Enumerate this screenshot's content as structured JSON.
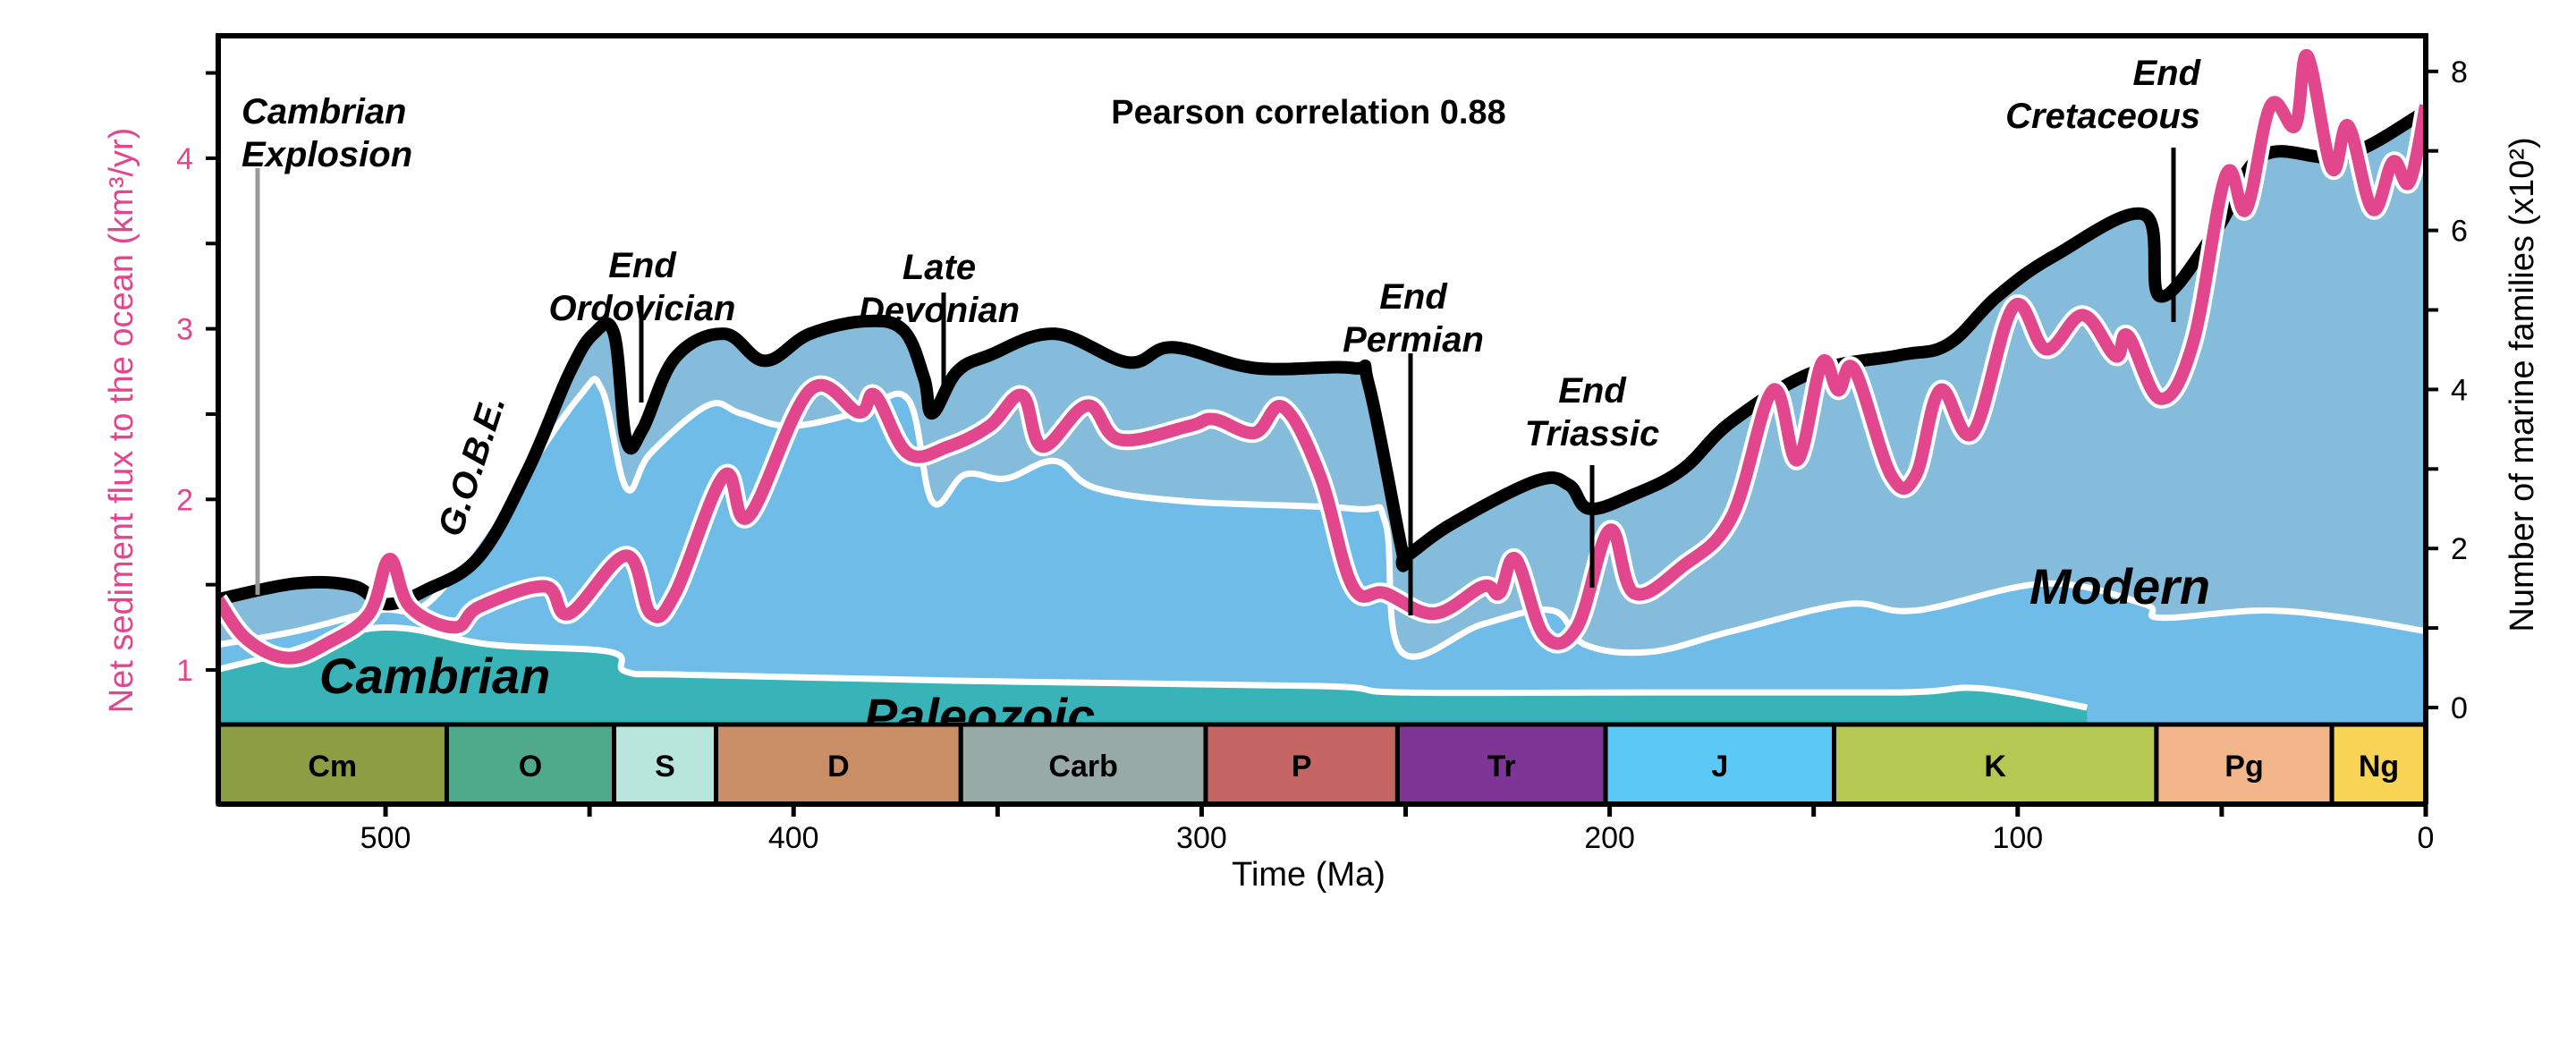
{
  "chart_data": {
    "type": "area",
    "title": "Pearson correlation 0.88",
    "xlabel": "Time (Ma)",
    "ylabel_left": "Net sediment flux to the ocean (km³/yr)",
    "ylabel_right": "Number of marine families (x10²)",
    "xlim": [
      541,
      0
    ],
    "ylim_left": [
      0.68,
      4.72
    ],
    "ylim_right": [
      -0.21,
      8.45
    ],
    "x_ticks": [
      500,
      400,
      300,
      200,
      100,
      0
    ],
    "y_left_ticks": [
      1,
      2,
      3,
      4
    ],
    "y_right_ticks": [
      0,
      2,
      4,
      6,
      8
    ],
    "colors": {
      "flux": "#e2468c",
      "total": "#000000",
      "cambrian": "#38b3b8",
      "paleozoic": "#6fbce8",
      "modern": "#85bbdb"
    },
    "fauna_labels": {
      "cambrian": "Cambrian",
      "paleozoic": "Paleozoic",
      "modern": "Modern"
    },
    "total_diversity": [
      [
        541,
        1.36
      ],
      [
        522,
        1.56
      ],
      [
        508,
        1.53
      ],
      [
        500,
        1.3
      ],
      [
        490,
        1.48
      ],
      [
        477,
        1.9
      ],
      [
        465,
        3.0
      ],
      [
        455,
        4.2
      ],
      [
        449,
        4.7
      ],
      [
        444,
        4.7
      ],
      [
        441,
        3.36
      ],
      [
        437,
        3.5
      ],
      [
        429,
        4.4
      ],
      [
        417,
        4.7
      ],
      [
        407,
        4.36
      ],
      [
        396,
        4.7
      ],
      [
        382,
        4.86
      ],
      [
        373,
        4.74
      ],
      [
        368,
        4.14
      ],
      [
        366,
        3.7
      ],
      [
        360,
        4.22
      ],
      [
        352,
        4.43
      ],
      [
        336,
        4.7
      ],
      [
        318,
        4.34
      ],
      [
        307,
        4.53
      ],
      [
        287,
        4.27
      ],
      [
        263,
        4.27
      ],
      [
        259,
        4.05
      ],
      [
        251,
        2.0
      ],
      [
        250,
        1.9
      ],
      [
        239,
        2.3
      ],
      [
        218,
        2.85
      ],
      [
        210,
        2.8
      ],
      [
        205,
        2.5
      ],
      [
        194,
        2.68
      ],
      [
        182,
        3.0
      ],
      [
        170,
        3.6
      ],
      [
        150,
        4.22
      ],
      [
        129,
        4.43
      ],
      [
        117,
        4.57
      ],
      [
        105,
        5.17
      ],
      [
        91,
        5.68
      ],
      [
        69,
        6.2
      ],
      [
        65,
        5.17
      ],
      [
        51,
        6.03
      ],
      [
        40,
        6.94
      ],
      [
        20,
        6.94
      ],
      [
        0,
        7.5
      ]
    ],
    "paleozoic_top": [
      [
        541,
        0.79
      ],
      [
        522,
        0.96
      ],
      [
        502,
        1.22
      ],
      [
        490,
        1.3
      ],
      [
        474,
        2.33
      ],
      [
        453,
        3.88
      ],
      [
        447,
        4.0
      ],
      [
        441,
        2.76
      ],
      [
        435,
        3.2
      ],
      [
        421,
        3.8
      ],
      [
        413,
        3.7
      ],
      [
        401,
        3.54
      ],
      [
        384,
        3.71
      ],
      [
        372,
        3.88
      ],
      [
        366,
        2.59
      ],
      [
        358,
        2.93
      ],
      [
        348,
        2.88
      ],
      [
        336,
        3.1
      ],
      [
        326,
        2.76
      ],
      [
        303,
        2.59
      ],
      [
        263,
        2.5
      ],
      [
        255,
        2.33
      ],
      [
        251,
        0.7
      ],
      [
        231,
        1.05
      ],
      [
        214,
        1.22
      ],
      [
        206,
        0.79
      ],
      [
        190,
        0.7
      ],
      [
        170,
        0.96
      ],
      [
        142,
        1.3
      ],
      [
        125,
        1.22
      ],
      [
        93,
        1.56
      ],
      [
        69,
        1.3
      ],
      [
        65,
        1.13
      ],
      [
        40,
        1.22
      ],
      [
        20,
        1.13
      ],
      [
        0,
        0.96
      ]
    ],
    "cambrian_top": [
      [
        541,
        0.48
      ],
      [
        524,
        0.7
      ],
      [
        510,
        0.93
      ],
      [
        496,
        1.0
      ],
      [
        474,
        0.79
      ],
      [
        445,
        0.7
      ],
      [
        441,
        0.45
      ],
      [
        425,
        0.41
      ],
      [
        352,
        0.33
      ],
      [
        271,
        0.27
      ],
      [
        251,
        0.19
      ],
      [
        190,
        0.19
      ],
      [
        129,
        0.19
      ],
      [
        109,
        0.24
      ],
      [
        83,
        0.0
      ]
    ],
    "sediment_flux": [
      [
        541,
        1.41
      ],
      [
        534,
        1.18
      ],
      [
        524,
        1.07
      ],
      [
        514,
        1.16
      ],
      [
        504,
        1.33
      ],
      [
        499,
        1.65
      ],
      [
        494,
        1.37
      ],
      [
        483,
        1.25
      ],
      [
        477,
        1.37
      ],
      [
        461,
        1.49
      ],
      [
        455,
        1.33
      ],
      [
        441,
        1.67
      ],
      [
        435,
        1.33
      ],
      [
        429,
        1.45
      ],
      [
        417,
        2.14
      ],
      [
        411,
        1.9
      ],
      [
        396,
        2.64
      ],
      [
        384,
        2.51
      ],
      [
        380,
        2.61
      ],
      [
        372,
        2.27
      ],
      [
        362,
        2.31
      ],
      [
        352,
        2.43
      ],
      [
        344,
        2.61
      ],
      [
        339,
        2.31
      ],
      [
        328,
        2.55
      ],
      [
        320,
        2.35
      ],
      [
        303,
        2.43
      ],
      [
        297,
        2.47
      ],
      [
        287,
        2.39
      ],
      [
        280,
        2.54
      ],
      [
        271,
        2.14
      ],
      [
        263,
        1.49
      ],
      [
        255,
        1.45
      ],
      [
        243,
        1.33
      ],
      [
        231,
        1.49
      ],
      [
        227,
        1.45
      ],
      [
        223,
        1.65
      ],
      [
        216,
        1.2
      ],
      [
        208,
        1.25
      ],
      [
        200,
        1.82
      ],
      [
        194,
        1.45
      ],
      [
        182,
        1.61
      ],
      [
        170,
        1.9
      ],
      [
        160,
        2.64
      ],
      [
        154,
        2.23
      ],
      [
        148,
        2.8
      ],
      [
        144,
        2.64
      ],
      [
        140,
        2.76
      ],
      [
        131,
        2.14
      ],
      [
        125,
        2.14
      ],
      [
        119,
        2.64
      ],
      [
        111,
        2.39
      ],
      [
        101,
        3.13
      ],
      [
        93,
        2.88
      ],
      [
        84,
        3.08
      ],
      [
        76,
        2.84
      ],
      [
        73,
        2.96
      ],
      [
        65,
        2.59
      ],
      [
        57,
        2.92
      ],
      [
        49,
        3.9
      ],
      [
        44,
        3.7
      ],
      [
        38,
        4.31
      ],
      [
        32,
        4.19
      ],
      [
        29,
        4.6
      ],
      [
        23,
        3.94
      ],
      [
        19,
        4.19
      ],
      [
        13,
        3.7
      ],
      [
        8,
        3.98
      ],
      [
        4,
        3.86
      ],
      [
        0,
        4.31
      ]
    ],
    "periods": [
      {
        "label": "Cm",
        "start": 541,
        "end": 485,
        "color": "#8c9e43"
      },
      {
        "label": "O",
        "start": 485,
        "end": 444,
        "color": "#4faa8b"
      },
      {
        "label": "S",
        "start": 444,
        "end": 419,
        "color": "#b9e6dc"
      },
      {
        "label": "D",
        "start": 419,
        "end": 359,
        "color": "#cb8f68"
      },
      {
        "label": "Carb",
        "start": 359,
        "end": 299,
        "color": "#97aaa5"
      },
      {
        "label": "P",
        "start": 299,
        "end": 252,
        "color": "#c56665"
      },
      {
        "label": "Tr",
        "start": 252,
        "end": 201,
        "color": "#7e3596"
      },
      {
        "label": "J",
        "start": 201,
        "end": 145,
        "color": "#5bc8f5"
      },
      {
        "label": "K",
        "start": 145,
        "end": 66,
        "color": "#b4c852"
      },
      {
        "label": "Pg",
        "start": 66,
        "end": 23,
        "color": "#f2b68a"
      },
      {
        "label": "Ng",
        "start": 23,
        "end": 0,
        "color": "#f7d456"
      }
    ],
    "annotations": [
      {
        "lines": [
          "Cambrian",
          "Explosion"
        ],
        "age": 538
      },
      {
        "lines": [
          "G.O.B.E."
        ],
        "age": 475
      },
      {
        "lines": [
          "End",
          "Ordovician"
        ],
        "age": 444
      },
      {
        "lines": [
          "Late",
          "Devonian"
        ],
        "age": 372
      },
      {
        "lines": [
          "End",
          "Permian"
        ],
        "age": 249
      },
      {
        "lines": [
          "End",
          "Triassic"
        ],
        "age": 203
      },
      {
        "lines": [
          "End",
          "Cretaceous"
        ],
        "age": 62
      }
    ]
  }
}
